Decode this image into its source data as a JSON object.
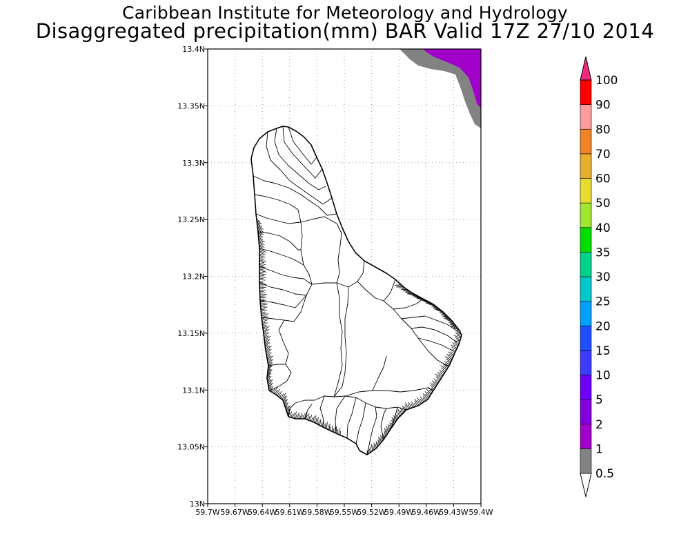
{
  "header": {
    "title_line1": "Caribbean Institute for Meteorology and Hydrology",
    "title_line2": "Disaggregated precipitation(mm) BAR Valid 17Z 27/10 2014"
  },
  "map": {
    "lat_range": [
      13.0,
      13.4
    ],
    "lon_range": [
      -59.7,
      -59.4
    ],
    "lat_ticks": [
      "13N",
      "13.05N",
      "13.1N",
      "13.15N",
      "13.2N",
      "13.25N",
      "13.3N",
      "13.35N",
      "13.4N"
    ],
    "lon_ticks": [
      "59.7W",
      "59.67W",
      "59.64W",
      "59.61W",
      "59.58W",
      "59.55W",
      "59.52W",
      "59.49W",
      "59.46W",
      "59.43W",
      "59.4W"
    ],
    "grid": true,
    "features": [
      "Barbados island outline with watershed/catchment boundaries",
      "precipitation contour in north-east corner (1-2 mm purple, 0.5-1 mm grey)"
    ]
  },
  "colorbar": {
    "labels": [
      "0.5",
      "1",
      "2",
      "5",
      "10",
      "15",
      "20",
      "25",
      "30",
      "35",
      "40",
      "50",
      "60",
      "70",
      "80",
      "90",
      "100"
    ],
    "colors": [
      "#828282",
      "#a000c8",
      "#8200dc",
      "#6e00fa",
      "#3c3cff",
      "#1e50ff",
      "#00a0ff",
      "#00c8c8",
      "#00d28c",
      "#00dc00",
      "#a0e632",
      "#e6dc32",
      "#e6af2d",
      "#f08228",
      "#fa9d9d",
      "#ff0000",
      "#f03c50",
      "#f0287d"
    ],
    "under_color": "#ffffff",
    "over_color": "#f0287d"
  }
}
